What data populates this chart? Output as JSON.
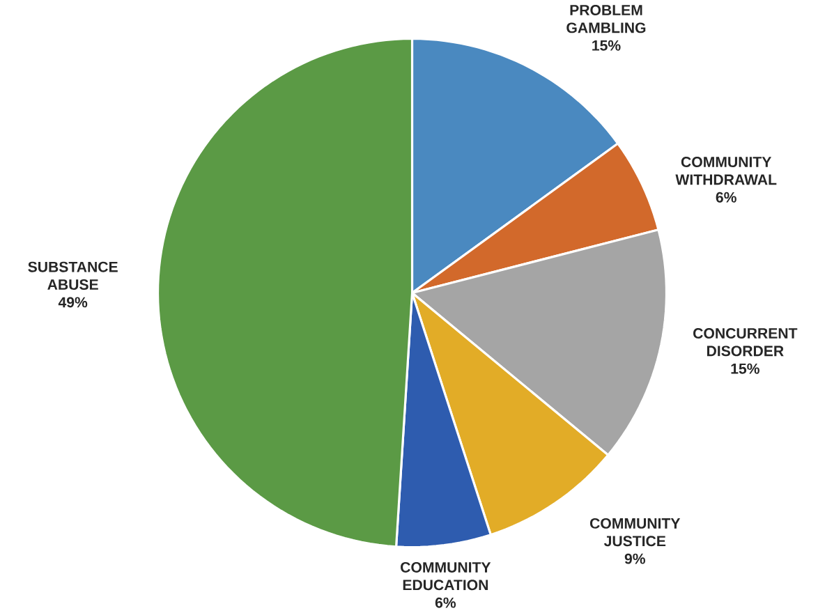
{
  "chart_data": {
    "type": "pie",
    "categories": [
      "PROBLEM GAMBLING",
      "COMMUNITY WITHDRAWAL",
      "CONCURRENT DISORDER",
      "COMMUNITY JUSTICE",
      "COMMUNITY EDUCATION",
      "SUBSTANCE ABUSE"
    ],
    "values": [
      15,
      6,
      15,
      9,
      6,
      49
    ],
    "value_labels": [
      "15%",
      "6%",
      "15%",
      "9%",
      "6%",
      "49%"
    ],
    "colors": [
      "#4a89c0",
      "#d2692b",
      "#a5a5a5",
      "#e2ac27",
      "#2e5caf",
      "#5b9a45"
    ],
    "legend": false
  }
}
